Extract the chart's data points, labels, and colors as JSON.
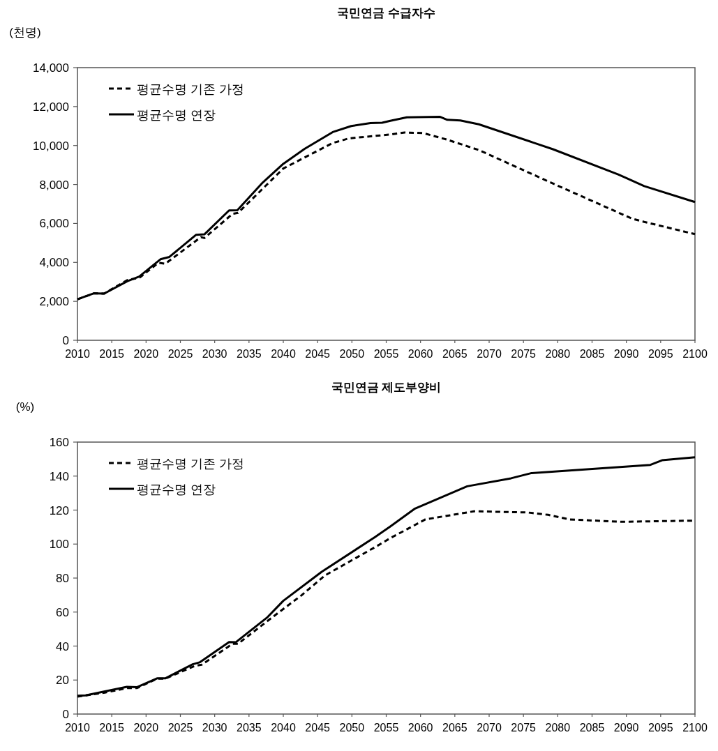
{
  "chart_data": [
    {
      "type": "line",
      "title": "국민연금 수급자수",
      "ylabel": "(천명)",
      "legend": "top left",
      "xlim": [
        2010,
        2100
      ],
      "xticks": [
        2010,
        2015,
        2020,
        2025,
        2030,
        2035,
        2040,
        2045,
        2050,
        2055,
        2060,
        2065,
        2070,
        2075,
        2080,
        2085,
        2090,
        2095,
        2100
      ],
      "ylim": [
        0,
        14000
      ],
      "yticks": [
        0,
        {
          "value": 2000,
          "label": "2,000"
        },
        {
          "value": 4000,
          "label": "4,000"
        },
        {
          "value": 6000,
          "label": "6,000"
        },
        {
          "value": 8000,
          "label": "8,000"
        },
        {
          "value": 10000,
          "label": "10,000"
        },
        {
          "value": 12000,
          "label": "12,000"
        },
        {
          "value": 14000,
          "label": "14,000"
        }
      ],
      "series": [
        {
          "name": "평균수명 기존 가정",
          "color": "#000000",
          "line_style": "dashed",
          "x": [
            2010,
            2012.4,
            2013.9,
            2017.3,
            2019,
            2021.8,
            2022.8,
            2028,
            2028.5,
            2032.6,
            2033.4,
            2040,
            2047.2,
            2049.6,
            2055.6,
            2057.7,
            2060.4,
            2063.8,
            2068.5,
            2079.3,
            2090.8,
            2092.6,
            2100
          ],
          "values": [
            2100,
            2410,
            2400,
            3100,
            3200,
            3980,
            3930,
            5300,
            5250,
            6490,
            6540,
            8820,
            10130,
            10370,
            10570,
            10670,
            10640,
            10310,
            9770,
            8050,
            6250,
            6080,
            5450
          ]
        },
        {
          "name": "평균수명 연장",
          "color": "#000000",
          "line_style": "solid",
          "x": [
            2010,
            2012.4,
            2013.9,
            2017.3,
            2019,
            2022.1,
            2023.4,
            2027.3,
            2028.5,
            2032.1,
            2033.3,
            2037,
            2040,
            2043.1,
            2047.2,
            2049.9,
            2052.7,
            2054.4,
            2055.6,
            2058,
            2062.8,
            2063.9,
            2065.8,
            2068.5,
            2079.3,
            2088.8,
            2092.6,
            2100
          ],
          "values": [
            2110,
            2410,
            2400,
            3040,
            3270,
            4160,
            4280,
            5420,
            5440,
            6670,
            6680,
            8100,
            9060,
            9830,
            10690,
            11000,
            11150,
            11170,
            11270,
            11450,
            11480,
            11320,
            11290,
            11090,
            9810,
            8520,
            7920,
            7100
          ]
        }
      ]
    },
    {
      "type": "line",
      "title": "국민연금 제도부양비",
      "ylabel": "(%)",
      "legend": "top left",
      "xlim": [
        2010,
        2100
      ],
      "xticks": [
        2010,
        2015,
        2020,
        2025,
        2030,
        2035,
        2040,
        2045,
        2050,
        2055,
        2060,
        2065,
        2070,
        2075,
        2080,
        2085,
        2090,
        2095,
        2100
      ],
      "ylim": [
        0,
        160
      ],
      "yticks": [
        0,
        20,
        40,
        60,
        80,
        100,
        120,
        140,
        160
      ],
      "series": [
        {
          "name": "평균수명 기존 가정",
          "color": "#000000",
          "line_style": "dashed",
          "x": [
            2010,
            2014,
            2017.3,
            2018.7,
            2021.6,
            2022.8,
            2027.1,
            2028.1,
            2032.6,
            2033.4,
            2038,
            2042.7,
            2046.1,
            2053.6,
            2055.6,
            2060.7,
            2067.8,
            2075.6,
            2078.6,
            2081.7,
            2089.2,
            2100
          ],
          "values": [
            10.3,
            12.6,
            15.3,
            15.3,
            20.8,
            20.8,
            28.3,
            29,
            41.3,
            41.3,
            55.7,
            70,
            81.6,
            98.7,
            103.5,
            114.5,
            119.3,
            118.6,
            117.2,
            114.5,
            113.1,
            113.8
          ]
        },
        {
          "name": "평균수명 연장",
          "color": "#000000",
          "line_style": "solid",
          "x": [
            2010,
            2011.2,
            2014,
            2017.2,
            2018.7,
            2021.6,
            2022.8,
            2026.8,
            2027.8,
            2032.1,
            2033.1,
            2037.7,
            2040,
            2045.6,
            2053.4,
            2055.6,
            2059.2,
            2066.8,
            2073.2,
            2076.1,
            2093.5,
            2095.2,
            2100
          ],
          "values": [
            10.8,
            11,
            13.3,
            16,
            15.8,
            21,
            21,
            29.3,
            30.4,
            42.4,
            42.3,
            57,
            66.6,
            83.7,
            104.2,
            110.4,
            120.9,
            134,
            138.7,
            141.7,
            146.6,
            149.3,
            151.1
          ]
        }
      ]
    }
  ]
}
